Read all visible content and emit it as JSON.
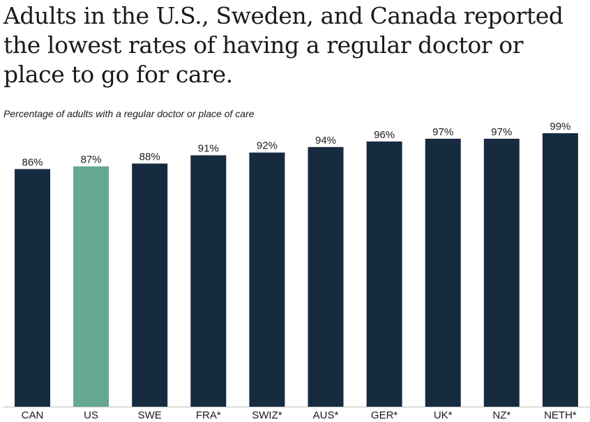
{
  "chart_data": {
    "type": "bar",
    "title": "Adults in the U.S., Sweden, and Canada reported the lowest rates of having a regular doctor or place to go for care.",
    "subtitle": "Percentage of adults with a regular doctor or place of care",
    "xlabel": "",
    "ylabel": "",
    "ylim": [
      0,
      100
    ],
    "grid": false,
    "value_suffix": "%",
    "categories": [
      "CAN",
      "US",
      "SWE",
      "FRA*",
      "SWIZ*",
      "AUS*",
      "GER*",
      "UK*",
      "NZ*",
      "NETH*"
    ],
    "values": [
      86,
      87,
      88,
      91,
      92,
      94,
      96,
      97,
      97,
      99
    ],
    "highlight_category": "US",
    "colors": {
      "default_bar": "#172b40",
      "highlight_bar": "#64a892",
      "baseline": "#bdbdbd",
      "text": "#1a1a1a"
    }
  }
}
